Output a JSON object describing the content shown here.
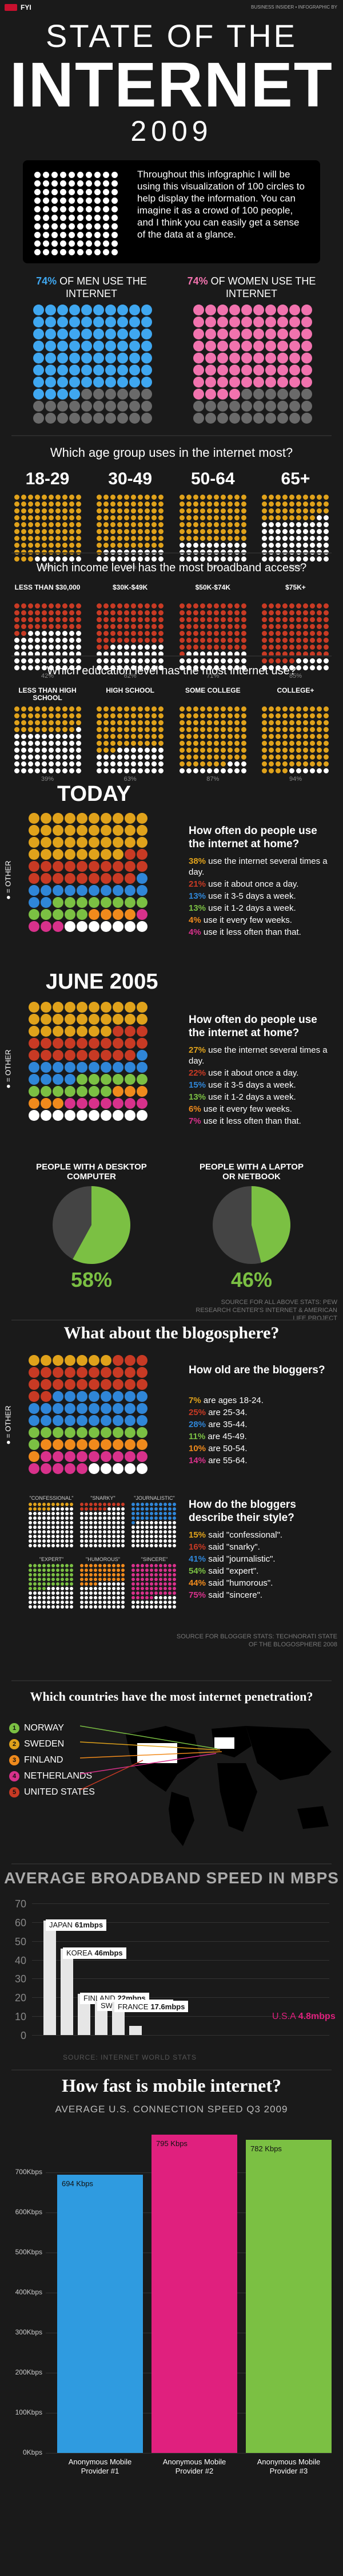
{
  "header": {
    "brand_tag": "FYI",
    "credit": "BUSINESS INSIDER • INFOGRAPHIC BY",
    "title_line1": "STATE OF THE",
    "title_line2": "INTERNET",
    "year": "2009"
  },
  "intro": {
    "text": "Throughout this infographic I will be using this visualization of 100 circles to help display the information. You can imagine it as a crowd of 100 people, and I think you can easily get a sense of the data at a glance."
  },
  "gender": {
    "men_pct": "74%",
    "men_label": "OF MEN USE THE INTERNET",
    "women_pct": "74%",
    "women_label": "OF WOMEN USE THE INTERNET",
    "men_value": 74,
    "women_value": 74
  },
  "age": {
    "question": "Which age group uses in the internet most?",
    "groups": [
      {
        "label": "18-29",
        "pct": "93%",
        "value": 93
      },
      {
        "label": "30-49",
        "pct": "81%",
        "value": 81
      },
      {
        "label": "50-64",
        "pct": "70%",
        "value": 70
      },
      {
        "label": "65+",
        "pct": "38%",
        "value": 38
      }
    ]
  },
  "income": {
    "question": "Which income level has the most broadband access?",
    "groups": [
      {
        "label": "LESS THAN $30,000",
        "pct": "42%",
        "value": 42
      },
      {
        "label": "$30K-$49K",
        "pct": "62%",
        "value": 62
      },
      {
        "label": "$50K-$74K",
        "pct": "71%",
        "value": 71
      },
      {
        "label": "$75K+",
        "pct": "85%",
        "value": 85
      }
    ]
  },
  "education": {
    "question": "Which education level has the most internet use?",
    "groups": [
      {
        "label": "LESS THAN HIGH SCHOOL",
        "pct": "39%",
        "value": 39
      },
      {
        "label": "HIGH SCHOOL",
        "pct": "63%",
        "value": 63
      },
      {
        "label": "SOME COLLEGE",
        "pct": "87%",
        "value": 87
      },
      {
        "label": "COLLEGE+",
        "pct": "94%",
        "value": 94
      }
    ]
  },
  "today": {
    "heading": "TODAY",
    "side_label": "● = OTHER",
    "question": "How often do people use the internet at home?",
    "items": [
      {
        "pct": "38%",
        "text": "use the internet several times a day.",
        "color": "#e0a21b"
      },
      {
        "pct": "21%",
        "text": "use it about once a day.",
        "color": "#c83a24"
      },
      {
        "pct": "13%",
        "text": "use it 3-5 days a week.",
        "color": "#2f86d8"
      },
      {
        "pct": "13%",
        "text": "use it 1-2 days a week.",
        "color": "#7bc043"
      },
      {
        "pct": "4%",
        "text": "use it every few weeks.",
        "color": "#f08a1c"
      },
      {
        "pct": "4%",
        "text": "use it less often than that.",
        "color": "#d8318b"
      }
    ]
  },
  "june2005": {
    "heading": "JUNE 2005",
    "side_label": "● = OTHER",
    "question": "How often do people use the internet at home?",
    "items": [
      {
        "pct": "27%",
        "text": "use the internet several times a day.",
        "color": "#e0a21b"
      },
      {
        "pct": "22%",
        "text": "use it about once a day.",
        "color": "#c83a24"
      },
      {
        "pct": "15%",
        "text": "use it 3-5 days a week.",
        "color": "#2f86d8"
      },
      {
        "pct": "13%",
        "text": "use it 1-2 days a week.",
        "color": "#7bc043"
      },
      {
        "pct": "6%",
        "text": "use it every few weeks.",
        "color": "#f08a1c"
      },
      {
        "pct": "7%",
        "text": "use it less often than that.",
        "color": "#d8318b"
      }
    ]
  },
  "computer": {
    "desktop_label": "PEOPLE WITH A DESKTOP COMPUTER",
    "desktop_pct": "58%",
    "desktop_value": 58,
    "laptop_label": "PEOPLE WITH A LAPTOP OR NETBOOK",
    "laptop_pct": "46%",
    "laptop_value": 46,
    "source": "SOURCE FOR ALL ABOVE STATS: PEW RESEARCH CENTER'S INTERNET & AMERICAN LIFE PROJECT"
  },
  "blog": {
    "heading": "What about the blogosphere?",
    "side_label": "● = OTHER",
    "age_question": "How old are the bloggers?",
    "age_items": [
      {
        "pct": "7%",
        "text": "are ages 18-24.",
        "color": "#e0a21b"
      },
      {
        "pct": "25%",
        "text": "are 25-34.",
        "color": "#c83a24"
      },
      {
        "pct": "28%",
        "text": "are 35-44.",
        "color": "#2f86d8"
      },
      {
        "pct": "11%",
        "text": "are 45-49.",
        "color": "#7bc043"
      },
      {
        "pct": "10%",
        "text": "are 50-54.",
        "color": "#f08a1c"
      },
      {
        "pct": "14%",
        "text": "are 55-64.",
        "color": "#d8318b"
      }
    ],
    "style_question": "How do the bloggers describe their style?",
    "style_items": [
      {
        "pct": "15%",
        "text": "said \"confessional\".",
        "color": "#e0a21b"
      },
      {
        "pct": "16%",
        "text": "said \"snarky\".",
        "color": "#c83a24"
      },
      {
        "pct": "41%",
        "text": "said \"journalistic\".",
        "color": "#2f86d8"
      },
      {
        "pct": "54%",
        "text": "said \"expert\".",
        "color": "#7bc043"
      },
      {
        "pct": "44%",
        "text": "said \"humorous\".",
        "color": "#f08a1c"
      },
      {
        "pct": "75%",
        "text": "said \"sincere\".",
        "color": "#d8318b"
      }
    ],
    "style_labels": [
      "\"CONFESSIONAL\"",
      "\"SNARKY\"",
      "\"JOURNALISTIC\"",
      "\"EXPERT\"",
      "\"HUMOROUS\"",
      "\"SINCERE\""
    ],
    "source": "SOURCE FOR BLOGGER STATS: TECHNORATI STATE OF THE BLOGOSPHERE 2008"
  },
  "countries": {
    "question": "Which countries have the most internet penetration?",
    "items": [
      {
        "rank": "1",
        "name": "NORWAY",
        "color": "#7bc043"
      },
      {
        "rank": "2",
        "name": "SWEDEN",
        "color": "#e0a21b"
      },
      {
        "rank": "3",
        "name": "FINLAND",
        "color": "#f08a1c"
      },
      {
        "rank": "4",
        "name": "NETHERLANDS",
        "color": "#d8318b"
      },
      {
        "rank": "5",
        "name": "UNITED STATES",
        "color": "#c83a24"
      }
    ]
  },
  "broadband": {
    "heading": "AVERAGE BROADBAND SPEED IN MBPS",
    "yticks": [
      "70",
      "60",
      "50",
      "40",
      "30",
      "20",
      "10",
      "0"
    ],
    "source": "SOURCE: INTERNET WORLD STATS",
    "chart_data": {
      "type": "bar",
      "categories": [
        "JAPAN",
        "KOREA",
        "FINLAND",
        "SWEDEN",
        "FRANCE",
        "U.S.A"
      ],
      "values": [
        61,
        46,
        22,
        18.2,
        17.6,
        4.8
      ],
      "labels": [
        "61mbps",
        "46mbps",
        "22mbps",
        "18.2mbps",
        "17.6mbps",
        "4.8mbps"
      ],
      "ylim": [
        0,
        70
      ]
    }
  },
  "mobile": {
    "heading": "How fast is mobile internet?",
    "subheading": "AVERAGE U.S. CONNECTION SPEED Q3 2009",
    "yticks": [
      "700Kbps",
      "600Kbps",
      "500Kbps",
      "400Kbps",
      "300Kbps",
      "200Kbps",
      "100Kbps",
      "0Kbps"
    ],
    "chart_data": {
      "type": "bar",
      "categories": [
        "Anonymous Mobile Provider #1",
        "Anonymous Mobile Provider #2",
        "Anonymous Mobile Provider #3"
      ],
      "values": [
        694,
        795,
        782
      ],
      "labels": [
        "694 Kbps",
        "795 Kbps",
        "782 Kbps"
      ],
      "colors": [
        "#2f9be0",
        "#e0207e",
        "#7bc043"
      ],
      "ylim": [
        0,
        800
      ]
    }
  }
}
